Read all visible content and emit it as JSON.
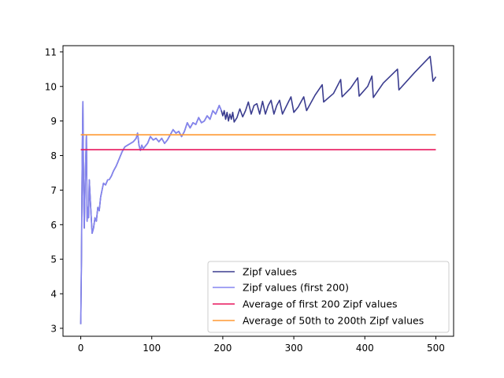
{
  "chart_data": {
    "type": "line",
    "title": "",
    "xlabel": "",
    "ylabel": "",
    "xlim": [
      -25,
      525
    ],
    "ylim": [
      2.77,
      11.18
    ],
    "xticks": [
      0,
      100,
      200,
      300,
      400,
      500
    ],
    "yticks": [
      3,
      4,
      5,
      6,
      7,
      8,
      9,
      10,
      11
    ],
    "grid": false,
    "legend_position": "lower-right",
    "series": [
      {
        "name": "Zipf values",
        "color": "#3b3d8f",
        "x": [
          0,
          1,
          2,
          3,
          4,
          5,
          6,
          7,
          8,
          9,
          10,
          11,
          12,
          14,
          16,
          18,
          20,
          22,
          24,
          26,
          28,
          30,
          32,
          35,
          38,
          40,
          43,
          46,
          50,
          54,
          58,
          62,
          66,
          70,
          74,
          78,
          80,
          82,
          84,
          86,
          88,
          90,
          94,
          98,
          102,
          106,
          110,
          114,
          118,
          122,
          126,
          130,
          134,
          138,
          142,
          146,
          150,
          154,
          158,
          162,
          166,
          170,
          174,
          178,
          182,
          186,
          190,
          195,
          198,
          200,
          202,
          204,
          206,
          208,
          210,
          212,
          214,
          216,
          220,
          224,
          228,
          232,
          236,
          240,
          244,
          248,
          252,
          256,
          260,
          264,
          268,
          272,
          276,
          280,
          284,
          290,
          296,
          300,
          306,
          314,
          318,
          330,
          340,
          342,
          356,
          366,
          368,
          380,
          390,
          392,
          404,
          410,
          412,
          426,
          446,
          448,
          470,
          492,
          496,
          500
        ],
        "y": [
          3.12,
          5.0,
          7.8,
          9.56,
          7.0,
          5.9,
          7.0,
          7.9,
          8.6,
          6.1,
          6.5,
          6.2,
          7.3,
          6.5,
          5.75,
          5.9,
          6.2,
          6.1,
          6.5,
          6.4,
          6.8,
          7.0,
          7.2,
          7.15,
          7.3,
          7.3,
          7.4,
          7.55,
          7.7,
          7.9,
          8.1,
          8.25,
          8.3,
          8.35,
          8.4,
          8.5,
          8.65,
          8.3,
          8.15,
          8.3,
          8.2,
          8.25,
          8.35,
          8.55,
          8.45,
          8.5,
          8.4,
          8.5,
          8.35,
          8.45,
          8.6,
          8.75,
          8.65,
          8.7,
          8.55,
          8.7,
          8.95,
          8.8,
          8.95,
          8.9,
          9.1,
          8.95,
          9.0,
          9.15,
          9.05,
          9.3,
          9.2,
          9.45,
          9.3,
          9.15,
          9.3,
          9.05,
          9.25,
          9.0,
          9.2,
          9.05,
          9.25,
          8.97,
          9.1,
          9.35,
          9.12,
          9.3,
          9.55,
          9.2,
          9.45,
          9.5,
          9.2,
          9.57,
          9.2,
          9.45,
          9.6,
          9.2,
          9.45,
          9.6,
          9.2,
          9.45,
          9.7,
          9.25,
          9.4,
          9.7,
          9.3,
          9.75,
          10.05,
          9.55,
          9.8,
          10.2,
          9.7,
          9.95,
          10.25,
          9.72,
          10.0,
          10.3,
          9.68,
          10.1,
          10.5,
          9.9,
          10.4,
          10.87,
          10.15,
          10.28
        ]
      },
      {
        "name": "Zipf values (first 200)",
        "color": "#8585f0",
        "x": [
          0,
          1,
          2,
          3,
          4,
          5,
          6,
          7,
          8,
          9,
          10,
          11,
          12,
          14,
          16,
          18,
          20,
          22,
          24,
          26,
          28,
          30,
          32,
          35,
          38,
          40,
          43,
          46,
          50,
          54,
          58,
          62,
          66,
          70,
          74,
          78,
          80,
          82,
          84,
          86,
          88,
          90,
          94,
          98,
          102,
          106,
          110,
          114,
          118,
          122,
          126,
          130,
          134,
          138,
          142,
          146,
          150,
          154,
          158,
          162,
          166,
          170,
          174,
          178,
          182,
          186,
          190,
          195,
          198
        ],
        "y": [
          3.12,
          5.0,
          7.8,
          9.56,
          7.0,
          5.9,
          7.0,
          7.9,
          8.6,
          6.1,
          6.5,
          6.2,
          7.3,
          6.5,
          5.75,
          5.9,
          6.2,
          6.1,
          6.5,
          6.4,
          6.8,
          7.0,
          7.2,
          7.15,
          7.3,
          7.3,
          7.4,
          7.55,
          7.7,
          7.9,
          8.1,
          8.25,
          8.3,
          8.35,
          8.4,
          8.5,
          8.65,
          8.3,
          8.15,
          8.3,
          8.2,
          8.25,
          8.35,
          8.55,
          8.45,
          8.5,
          8.4,
          8.5,
          8.35,
          8.45,
          8.6,
          8.75,
          8.65,
          8.7,
          8.55,
          8.7,
          8.95,
          8.8,
          8.95,
          8.9,
          9.1,
          8.95,
          9.0,
          9.15,
          9.05,
          9.3,
          9.2,
          9.45,
          9.3
        ]
      },
      {
        "name": "Average of first 200 Zipf values",
        "color": "#e8175d",
        "x": [
          0,
          500
        ],
        "y": [
          8.17,
          8.17
        ]
      },
      {
        "name": "Average of 50th to 200th Zipf values",
        "color": "#ff9933",
        "x": [
          0,
          500
        ],
        "y": [
          8.6,
          8.6
        ]
      }
    ]
  }
}
